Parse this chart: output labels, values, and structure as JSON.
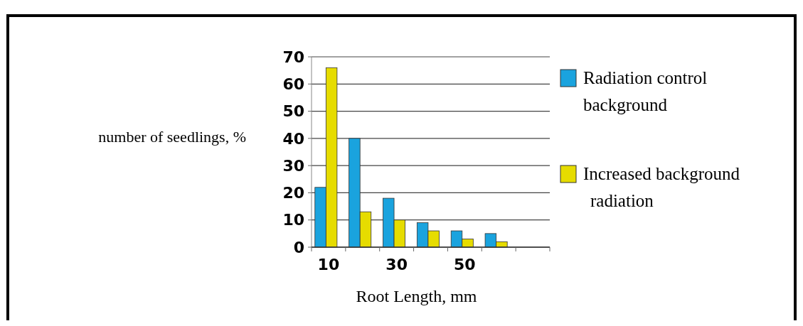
{
  "chart_data": {
    "type": "bar",
    "xlabel": "Root Length, mm",
    "ylabel": "number of seedlings, %",
    "categories": [
      "10",
      null,
      "30",
      null,
      "50",
      null,
      null
    ],
    "series": [
      {
        "name": "Radiation control background",
        "color": "#1aa3de",
        "values": [
          22,
          40,
          18,
          9,
          6,
          5,
          null
        ]
      },
      {
        "name": "Increased background radiation",
        "color": "#e6dc00",
        "values": [
          66,
          13,
          10,
          6,
          3,
          2,
          null
        ]
      }
    ],
    "ylim": [
      0,
      70
    ],
    "yticks": [
      0,
      10,
      20,
      30,
      40,
      50,
      60,
      70
    ],
    "grid": "y",
    "legend": "right"
  }
}
